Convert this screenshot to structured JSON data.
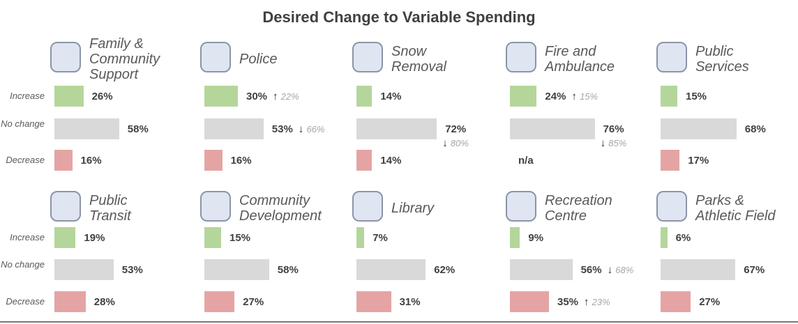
{
  "chart_data": {
    "type": "bar",
    "title": "Desired Change to Variable Spending",
    "categories": [
      "Increase",
      "No change",
      "Decrease"
    ],
    "colors": [
      "#b4d69a",
      "#d9d9d9",
      "#e5a4a4"
    ],
    "panels": [
      {
        "title": [
          "Family &",
          "Community",
          "Support"
        ],
        "values": [
          26,
          58,
          16
        ],
        "value_labels": [
          "26%",
          "58%",
          "16%"
        ]
      },
      {
        "title": [
          "Police"
        ],
        "values": [
          30,
          53,
          16
        ],
        "value_labels": [
          "30%",
          "53%",
          "16%"
        ],
        "previous": [
          22,
          66,
          null
        ],
        "previous_labels": [
          "22%",
          "66%",
          null
        ]
      },
      {
        "title": [
          "Snow",
          "Removal"
        ],
        "values": [
          14,
          72,
          14
        ],
        "value_labels": [
          "14%",
          "72%",
          "14%"
        ],
        "previous": [
          null,
          80,
          null
        ],
        "previous_labels": [
          null,
          "80%",
          null
        ]
      },
      {
        "title": [
          "Fire and",
          "Ambulance"
        ],
        "values": [
          24,
          76,
          null
        ],
        "value_labels": [
          "24%",
          "76%",
          "n/a"
        ],
        "previous": [
          15,
          85,
          null
        ],
        "previous_labels": [
          "15%",
          "85%",
          null
        ]
      },
      {
        "title": [
          "Public",
          "Services"
        ],
        "values": [
          15,
          68,
          17
        ],
        "value_labels": [
          "15%",
          "68%",
          "17%"
        ]
      },
      {
        "title": [
          "Public",
          "Transit"
        ],
        "values": [
          19,
          53,
          28
        ],
        "value_labels": [
          "19%",
          "53%",
          "28%"
        ]
      },
      {
        "title": [
          "Community",
          "Development"
        ],
        "values": [
          15,
          58,
          27
        ],
        "value_labels": [
          "15%",
          "58%",
          "27%"
        ]
      },
      {
        "title": [
          "Library"
        ],
        "values": [
          7,
          62,
          31
        ],
        "value_labels": [
          "7%",
          "62%",
          "31%"
        ]
      },
      {
        "title": [
          "Recreation",
          "Centre"
        ],
        "values": [
          9,
          56,
          35
        ],
        "value_labels": [
          "9%",
          "56%",
          "35%"
        ],
        "previous": [
          null,
          68,
          23
        ],
        "previous_labels": [
          null,
          "68%",
          "23%"
        ]
      },
      {
        "title": [
          "Parks &",
          "Athletic Field"
        ],
        "values": [
          6,
          67,
          27
        ],
        "value_labels": [
          "6%",
          "67%",
          "27%"
        ]
      }
    ]
  }
}
